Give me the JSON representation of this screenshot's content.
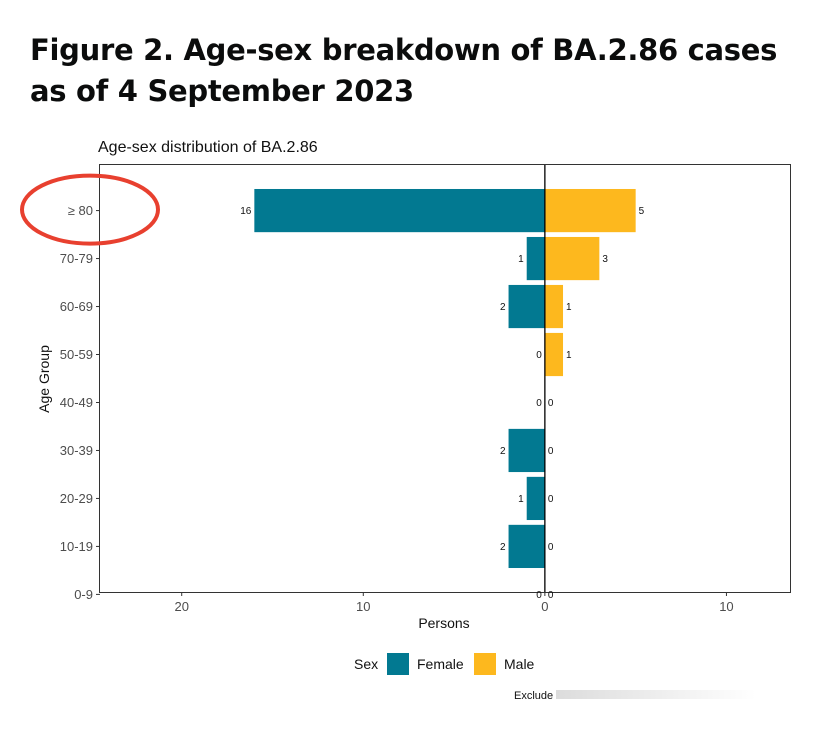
{
  "figure": {
    "title": "Figure 2. Age-sex breakdown of BA.2.86 cases as of 4 September 2023"
  },
  "chart_data": {
    "type": "bar",
    "orientation": "horizontal",
    "title": "Age-sex distribution of BA.2.86",
    "xlabel": "Persons",
    "ylabel": "Age Group",
    "categories": [
      "≥ 80",
      "70-79",
      "60-69",
      "50-59",
      "40-49",
      "30-39",
      "20-29",
      "10-19",
      "0-9"
    ],
    "series": [
      {
        "name": "Female",
        "color": "#027991",
        "values": [
          16,
          1,
          2,
          0,
          0,
          2,
          1,
          2,
          0
        ]
      },
      {
        "name": "Male",
        "color": "#FDB81E",
        "values": [
          5,
          3,
          1,
          1,
          0,
          0,
          0,
          0,
          0
        ]
      }
    ],
    "x_ticks": [
      {
        "position": -20,
        "label": "20"
      },
      {
        "position": -10,
        "label": "10"
      },
      {
        "position": 0,
        "label": "0"
      },
      {
        "position": 10,
        "label": "10"
      }
    ],
    "xlim": [
      -24.5,
      13.5
    ],
    "legend": {
      "title": "Sex",
      "placement": "bottom"
    },
    "grid": false,
    "highlight_category": "≥ 80",
    "highlight_color": "#E8402F",
    "footnote": "Exclude"
  }
}
